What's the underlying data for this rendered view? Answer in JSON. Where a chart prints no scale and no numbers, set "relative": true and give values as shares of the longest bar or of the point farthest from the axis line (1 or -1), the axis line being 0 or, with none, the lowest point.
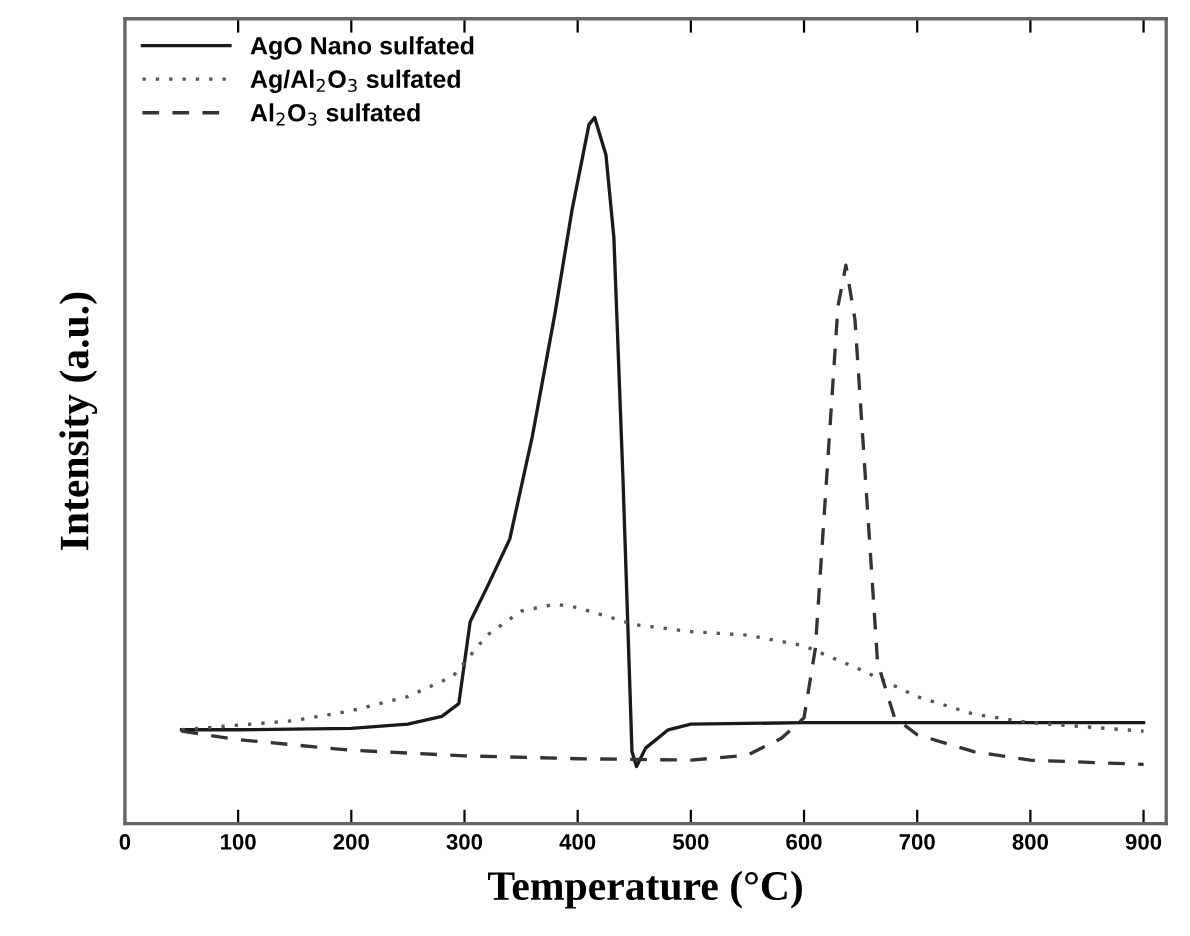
{
  "chart_data": {
    "type": "line",
    "relative": true,
    "xlabel": "Temperature (°C)",
    "ylabel": "Intensity (a.u.)",
    "xlim": [
      0,
      920
    ],
    "xticks": [
      0,
      100,
      200,
      300,
      400,
      500,
      600,
      700,
      800,
      900
    ],
    "tick_labels": "x",
    "grid": false,
    "legend": "top left",
    "series": [
      {
        "name": "AgO Nano sulfated",
        "color": "#1a1a1a",
        "line_style": "solid",
        "x": [
          50,
          100,
          200,
          250,
          280,
          295,
          305,
          320,
          340,
          360,
          380,
          395,
          410,
          415,
          425,
          432,
          440,
          448,
          452,
          460,
          480,
          500,
          600,
          900
        ],
        "values": [
          0.133,
          0.133,
          0.135,
          0.141,
          0.152,
          0.17,
          0.286,
          0.335,
          0.403,
          0.549,
          0.723,
          0.869,
          0.99,
          1.0,
          0.947,
          0.83,
          0.49,
          0.102,
          0.081,
          0.107,
          0.133,
          0.141,
          0.143,
          0.143
        ]
      },
      {
        "name": "Ag/Al$_{2}$O$_{3}$ sulfated",
        "color": "#555555",
        "line_style": "dotted",
        "x": [
          50,
          150,
          200,
          250,
          290,
          320,
          350,
          380,
          400,
          450,
          500,
          550,
          600,
          650,
          700,
          750,
          800,
          900
        ],
        "values": [
          0.133,
          0.146,
          0.16,
          0.18,
          0.209,
          0.267,
          0.301,
          0.311,
          0.306,
          0.282,
          0.272,
          0.267,
          0.252,
          0.218,
          0.18,
          0.155,
          0.143,
          0.131
        ]
      },
      {
        "name": "Al$_{2}$O$_{3}$ sulfated",
        "color": "#333333",
        "line_style": "dashed",
        "x": [
          50,
          100,
          200,
          300,
          400,
          500,
          550,
          580,
          600,
          610,
          620,
          630,
          637,
          645,
          655,
          665,
          680,
          700,
          750,
          800,
          900
        ],
        "values": [
          0.131,
          0.119,
          0.104,
          0.096,
          0.092,
          0.09,
          0.097,
          0.121,
          0.15,
          0.248,
          0.49,
          0.733,
          0.791,
          0.714,
          0.471,
          0.228,
          0.15,
          0.126,
          0.102,
          0.09,
          0.084
        ]
      }
    ]
  }
}
